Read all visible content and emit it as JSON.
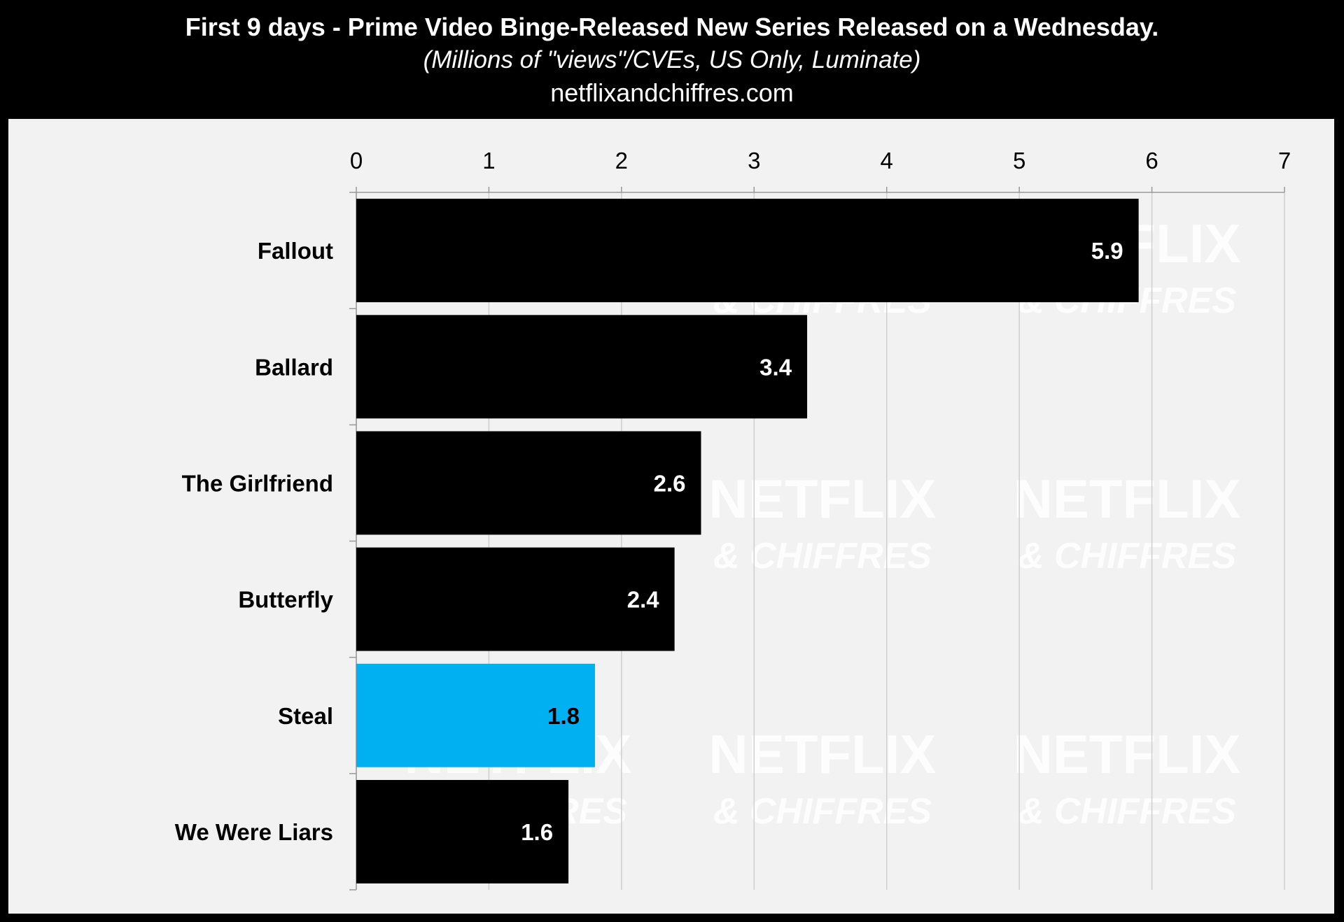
{
  "title": "First 9 days - Prime Video Binge-Released New Series Released on a Wednesday.",
  "subtitle": "(Millions of \"views\"/CVEs, US Only, Luminate)",
  "source": "netflixandchiffres.com",
  "watermark": {
    "line1": "NETFLIX",
    "line2": "& CHIFFRES"
  },
  "colors": {
    "default_bar": "#000000",
    "highlight_bar": "#00b0f0",
    "panel": "#f2f2f2",
    "header": "#000000"
  },
  "chart_data": {
    "type": "bar",
    "orientation": "horizontal",
    "categories": [
      "Fallout",
      "Ballard",
      "The Girlfriend",
      "Butterfly",
      "Steal",
      "We Were Liars"
    ],
    "values": [
      5.9,
      3.4,
      2.6,
      2.4,
      1.8,
      1.6
    ],
    "data_labels": [
      "5.9",
      "3.4",
      "2.6",
      "2.4",
      "1.8",
      "1.6"
    ],
    "highlight": "Steal",
    "xlim": [
      0,
      7
    ],
    "xticks": [
      0,
      1,
      2,
      3,
      4,
      5,
      6,
      7
    ],
    "x_axis_position": "top",
    "grid": true,
    "legend": "none"
  }
}
